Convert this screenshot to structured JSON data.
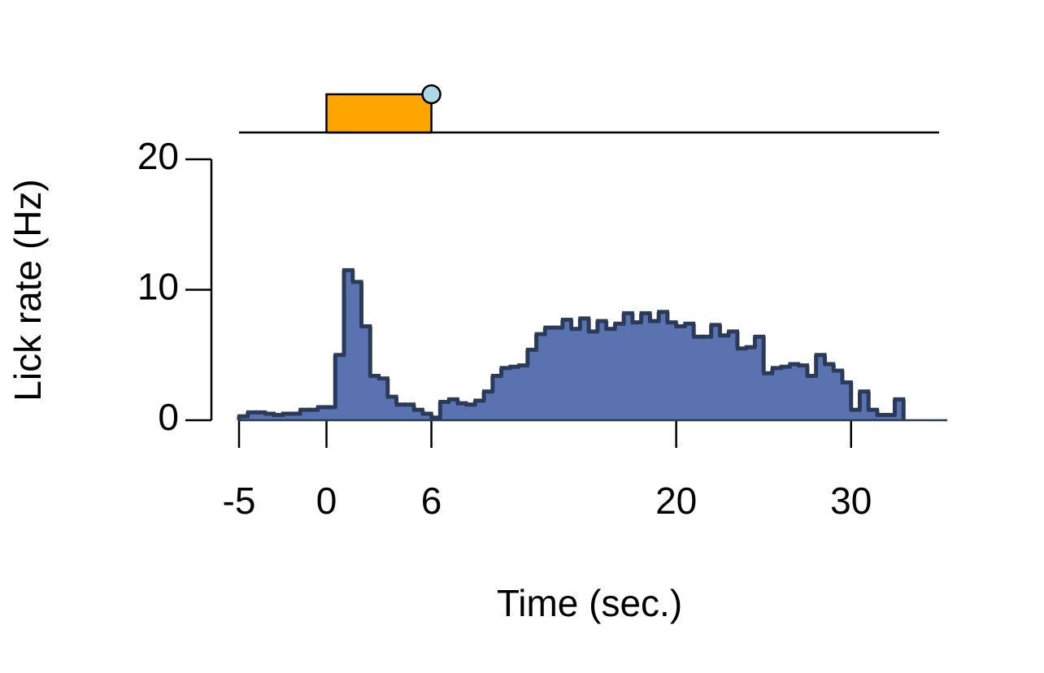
{
  "chart_data": {
    "type": "histogram",
    "xlabel": "Time (sec.)",
    "ylabel": "Lick rate (Hz)",
    "bins": [
      -5,
      -4.5,
      -4,
      -3.5,
      -3,
      -2.5,
      -2,
      -1.5,
      -1,
      -0.5,
      0,
      0.5,
      1,
      1.5,
      2,
      2.5,
      3,
      3.5,
      4,
      4.5,
      5,
      5.5,
      6,
      6.5,
      7,
      7.5,
      8,
      8.5,
      9,
      9.5,
      10,
      10.5,
      11,
      11.5,
      12,
      12.5,
      13,
      13.5,
      14,
      14.5,
      15,
      15.5,
      16,
      16.5,
      17,
      17.5,
      18,
      18.5,
      19,
      19.5,
      20,
      20.5,
      21,
      21.5,
      22,
      22.5,
      23,
      23.5,
      24,
      24.5,
      25,
      25.5,
      26,
      26.5,
      27,
      27.5,
      28,
      28.5,
      29,
      29.5,
      30,
      30.5,
      31,
      31.5,
      32,
      32.5,
      33
    ],
    "values": [
      0.3,
      0.6,
      0.6,
      0.5,
      0.4,
      0.5,
      0.5,
      0.8,
      0.8,
      1.0,
      1.0,
      5.0,
      11.5,
      10.6,
      7.2,
      3.4,
      3.2,
      1.8,
      1.2,
      1.2,
      0.8,
      0.5,
      0.2,
      1.4,
      1.6,
      1.3,
      1.2,
      1.5,
      2.2,
      3.4,
      4.0,
      4.1,
      4.2,
      5.4,
      6.6,
      7.1,
      7.1,
      7.7,
      7.0,
      7.8,
      6.8,
      7.6,
      7.0,
      7.4,
      8.2,
      7.5,
      8.2,
      7.6,
      8.3,
      7.5,
      7.2,
      7.4,
      6.4,
      6.4,
      7.3,
      6.5,
      6.8,
      5.5,
      5.6,
      6.4,
      3.6,
      4.0,
      4.1,
      4.3,
      4.2,
      3.4,
      5.0,
      4.3,
      3.8,
      2.9,
      0.8,
      2.2,
      0.8,
      0.4,
      0.4,
      1.6
    ],
    "color": "#5b72b0",
    "edge_color": "#2b3a58",
    "xlim": [
      -5,
      35.5
    ],
    "ylim": [
      0,
      20
    ],
    "xticks": [
      -5,
      0,
      6,
      20,
      30
    ],
    "yticks": [
      0,
      10,
      20
    ],
    "stimulus": [
      0,
      6
    ],
    "stimulus_color": "#ffa500",
    "reward_time": 6,
    "reward_color": "#add8e6"
  }
}
